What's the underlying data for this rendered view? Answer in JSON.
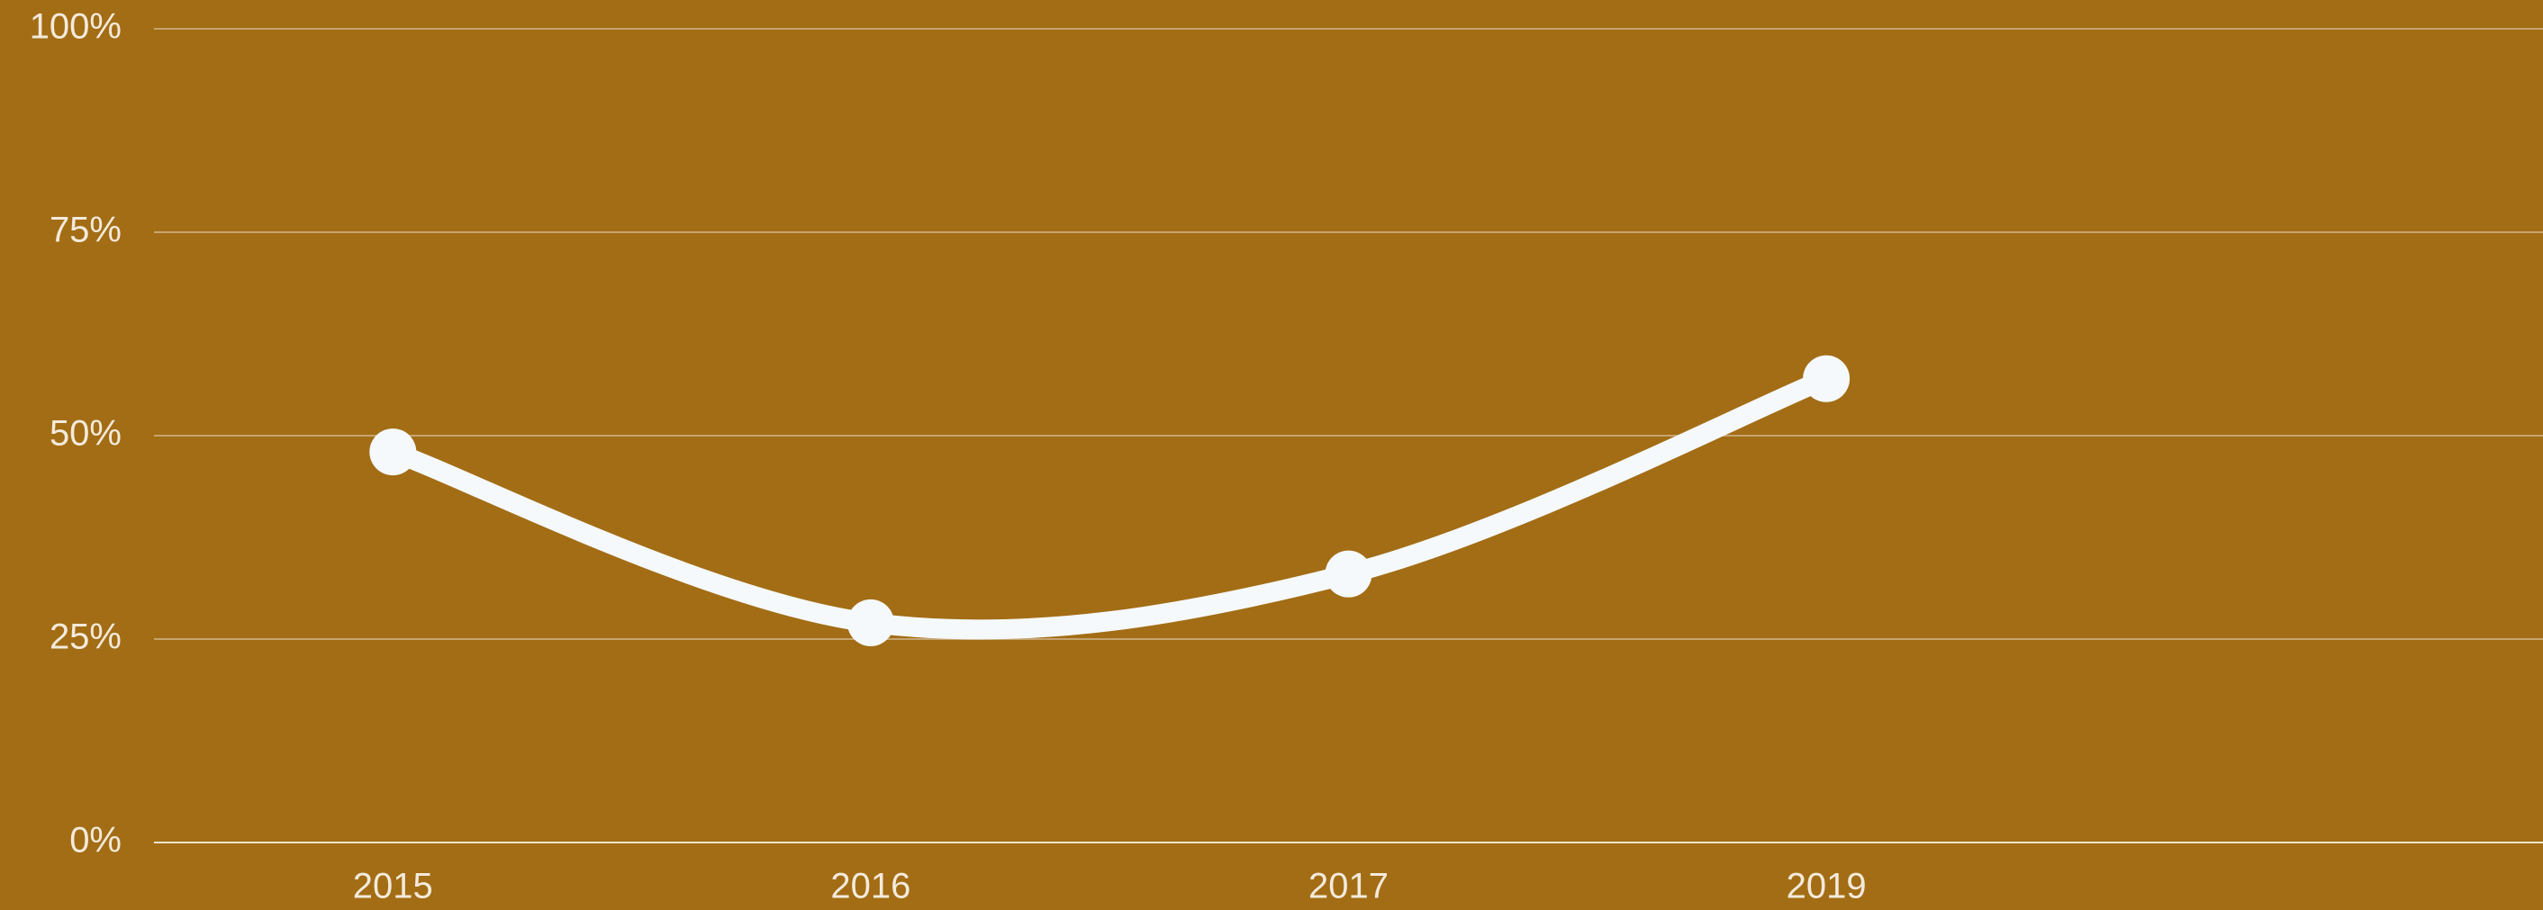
{
  "chart_data": {
    "type": "line",
    "categories": [
      "2015",
      "2016",
      "2017",
      "2019",
      null
    ],
    "series": [
      {
        "name": null,
        "color": "#f5f9fc",
        "values": [
          48,
          27,
          33,
          57,
          null
        ]
      }
    ],
    "ylim": [
      0,
      100
    ],
    "yticks": [
      {
        "value": 0,
        "label": "0%"
      },
      {
        "value": 25,
        "label": "25%"
      },
      {
        "value": 50,
        "label": "50%"
      },
      {
        "value": 75,
        "label": "75%"
      },
      {
        "value": 100,
        "label": "100%"
      }
    ],
    "grid": true,
    "smooth": true
  }
}
